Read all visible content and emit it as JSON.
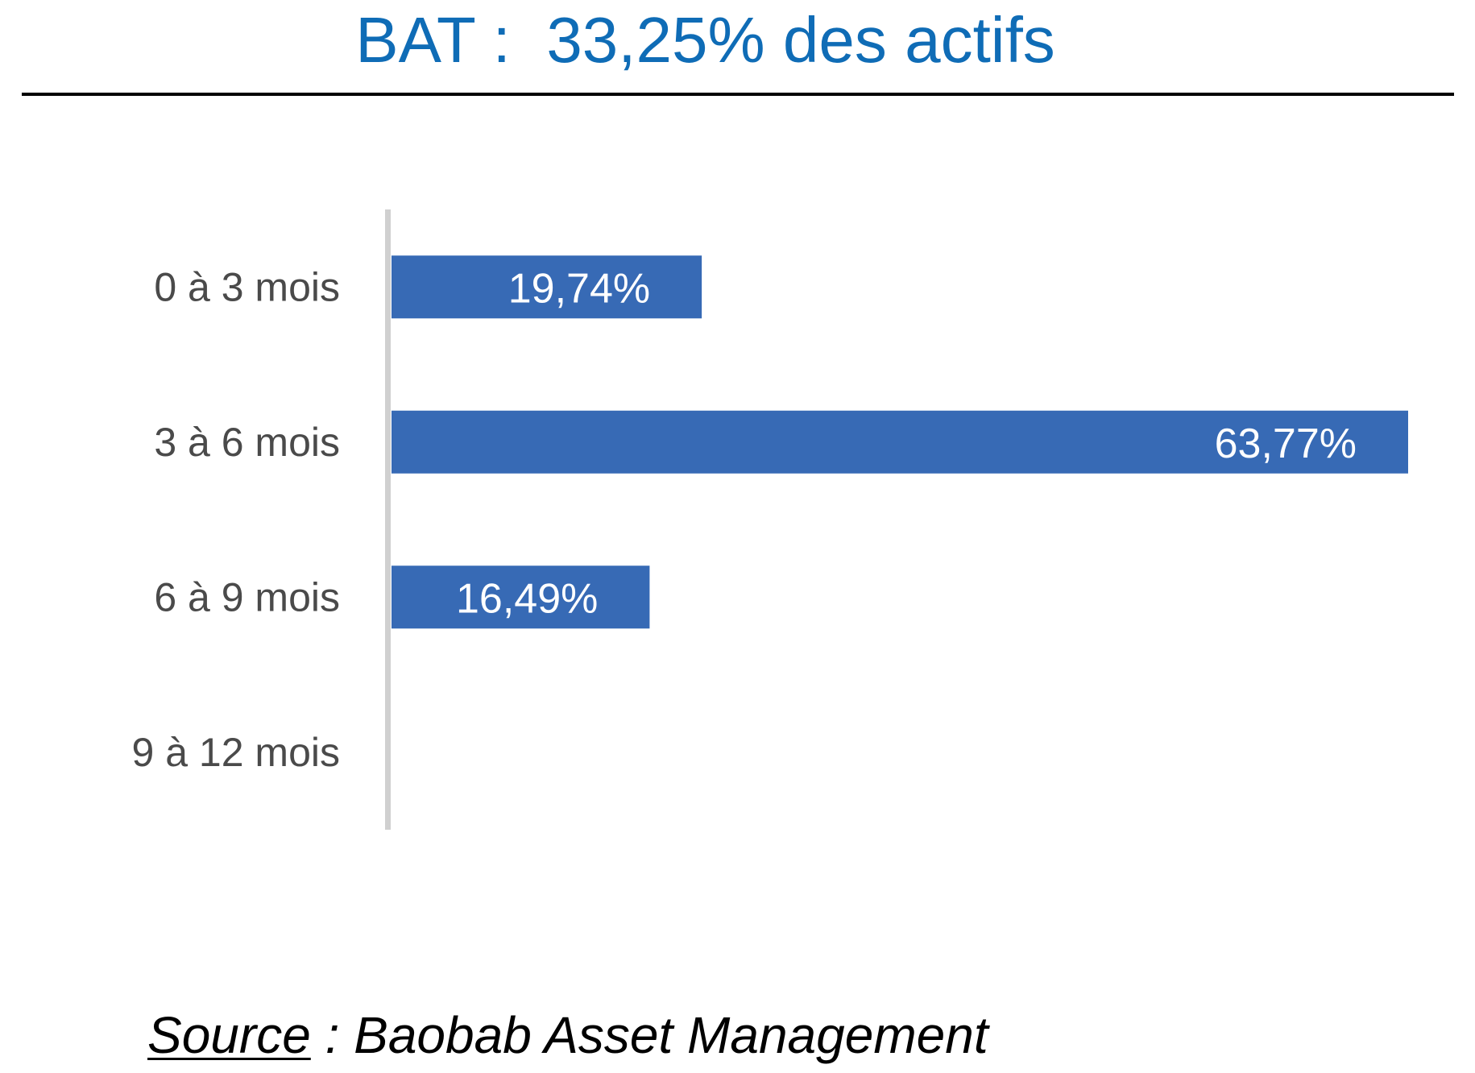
{
  "colors": {
    "title": "#0f6cb6",
    "bar": "#376ab5",
    "bar_label": "#ffffff",
    "category_label": "#4a4a4a",
    "axis": "#d0d0d0"
  },
  "chart_data": {
    "type": "bar",
    "orientation": "horizontal",
    "title": "BAT :  33,25% des actifs",
    "categories": [
      "0 à 3 mois",
      "3 à 6 mois",
      "6 à 9 mois",
      "9 à 12 mois"
    ],
    "values": [
      19.74,
      63.77,
      16.49,
      0
    ],
    "value_labels": [
      "19,74%",
      "63,77%",
      "16,49%",
      ""
    ],
    "xlim": [
      0,
      63.77
    ],
    "grid": false,
    "legend": "none"
  },
  "source": {
    "label": "Source",
    "text": " : Baobab Asset Management"
  }
}
